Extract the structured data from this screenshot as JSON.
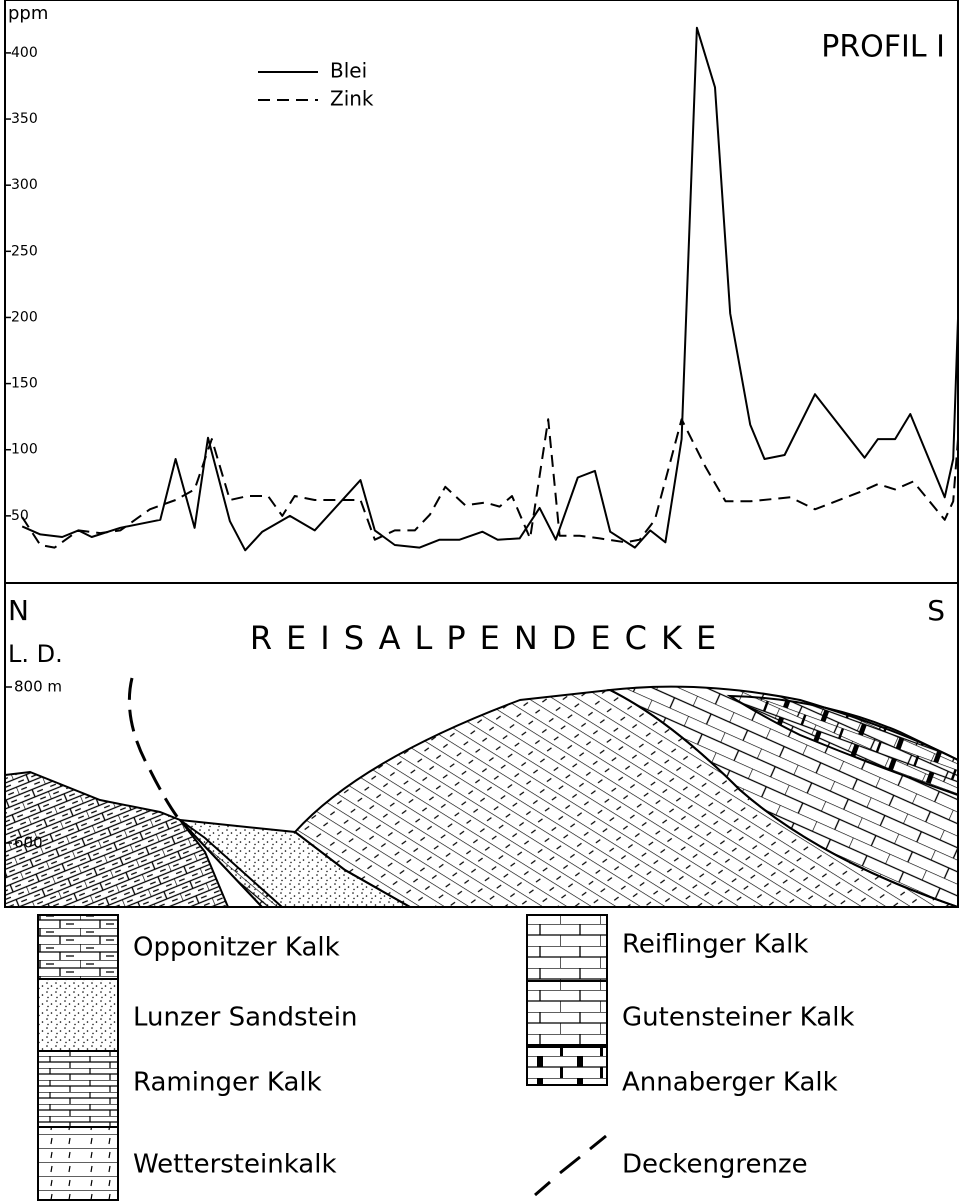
{
  "chart_data": {
    "type": "line",
    "title": "PROFIL I",
    "y_label": "ppm",
    "xlim": [
      0,
      100
    ],
    "ylim": [
      0,
      440
    ],
    "yticks": [
      50,
      100,
      150,
      200,
      250,
      300,
      350,
      400
    ],
    "series": [
      {
        "name": "Blei",
        "color": "#000000",
        "dash": false,
        "x": [
          1.8,
          3.7,
          6,
          7.7,
          9.1,
          12.1,
          16.3,
          17.9,
          19.9,
          21.3,
          23.6,
          25.2,
          27,
          29.9,
          32.5,
          37.3,
          38.8,
          40.9,
          43.5,
          45.6,
          47.7,
          50.1,
          51.7,
          54,
          56.1,
          57.8,
          60.1,
          61.9,
          63.5,
          66.1,
          67.7,
          69.3,
          71,
          72.6,
          74.5,
          76.1,
          78.2,
          79.7,
          81.8,
          85,
          90.2,
          91.6,
          93.4,
          95,
          98.6,
          99.5,
          100
        ],
        "values": [
          42,
          36,
          34,
          39,
          34,
          41,
          47,
          93,
          41,
          109,
          46,
          24,
          38,
          50,
          39,
          77,
          39,
          28,
          26,
          32,
          32,
          38,
          32,
          33,
          56,
          32,
          79,
          84,
          38,
          26,
          39,
          30,
          108,
          419,
          374,
          203,
          119,
          93,
          96,
          142,
          94,
          108,
          108,
          127,
          64,
          93,
          199
        ]
      },
      {
        "name": "Zink",
        "color": "#000000",
        "dash": true,
        "x": [
          1.8,
          3.7,
          5.2,
          7.7,
          10,
          12.1,
          15.2,
          17.9,
          19.9,
          21.7,
          23.6,
          25.5,
          27.6,
          29.1,
          30.4,
          32.5,
          37.3,
          38.8,
          40.9,
          43,
          44.6,
          46.2,
          48.3,
          50.4,
          51.9,
          53.2,
          55.1,
          57,
          58.2,
          60.3,
          62.4,
          65.1,
          66.6,
          68.2,
          71,
          73.5,
          75.6,
          78.2,
          82.4,
          85,
          89.7,
          91.6,
          93.4,
          95.3,
          98.6,
          99.5,
          100
        ],
        "values": [
          49,
          28,
          26,
          39,
          37,
          39,
          55,
          62,
          70,
          108,
          62,
          65,
          65,
          50,
          65,
          62,
          62,
          32,
          39,
          39,
          51,
          72,
          58,
          60,
          57,
          65,
          33,
          123,
          35,
          35,
          33,
          30,
          32,
          47,
          123,
          87,
          61,
          61,
          64,
          55,
          68,
          74,
          70,
          76,
          47,
          61,
          108
        ]
      }
    ]
  },
  "section": {
    "north": "N",
    "south": "S",
    "name": "REISALPENDECKE",
    "unit": "L. D.",
    "elevations": [
      "800 m",
      "600"
    ]
  },
  "key": {
    "left": [
      "Opponitzer Kalk",
      "Lunzer Sandstein",
      "Raminger Kalk",
      "Wettersteinkalk"
    ],
    "right": [
      "Reiflinger Kalk",
      "Gutensteiner Kalk",
      "Annaberger Kalk",
      "Deckengrenze"
    ]
  }
}
